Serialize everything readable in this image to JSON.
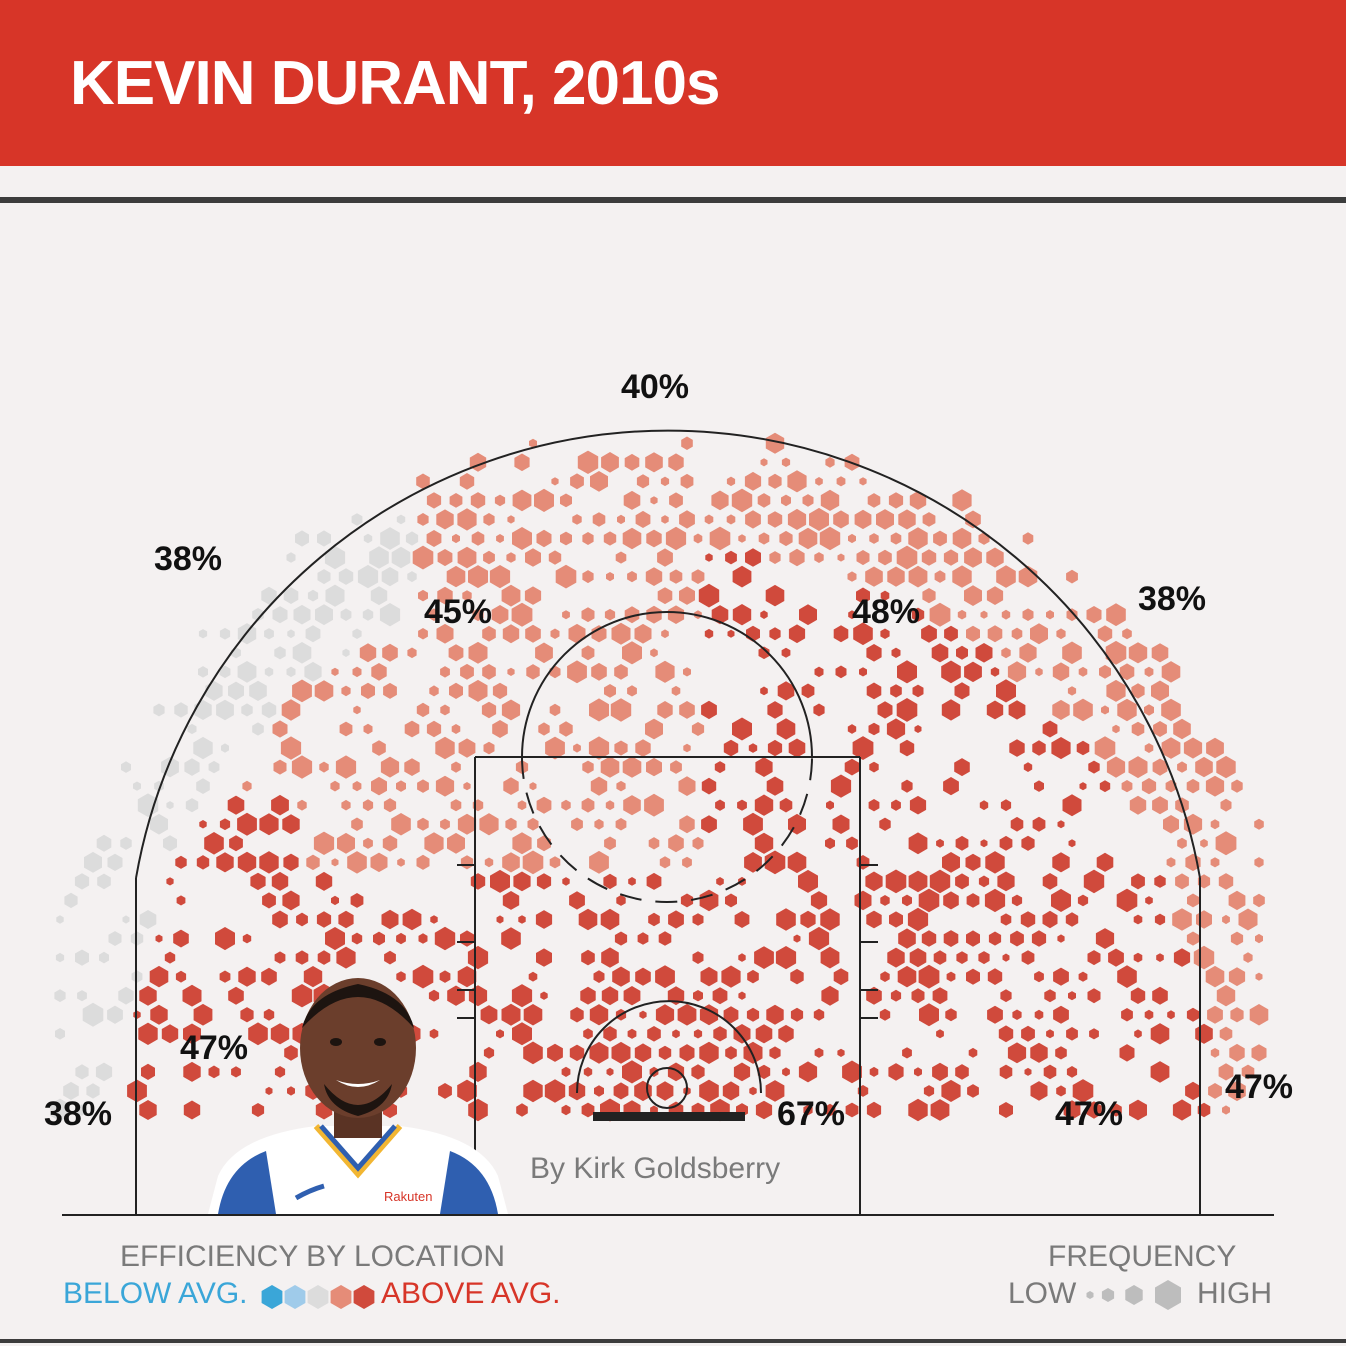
{
  "header": {
    "title": "KEVIN DURANT, 2010s"
  },
  "credit": "By Kirk Goldsberry",
  "colors": {
    "header_bg": "#d73528",
    "below_avg": "#3aa6d8",
    "below_avg_light": "#9fcbea",
    "average": "#dcdcdc",
    "above_avg_light": "#e58c78",
    "above_avg": "#d04a3c",
    "gray_text": "#7a7a7a"
  },
  "legend": {
    "efficiency_title": "EFFICIENCY BY LOCATION",
    "below_label": "BELOW AVG.",
    "above_label": "ABOVE AVG.",
    "frequency_title": "FREQUENCY",
    "low_label": "LOW",
    "high_label": "HIGH"
  },
  "chart_data": {
    "type": "heatmap",
    "title": "KEVIN DURANT, 2010s",
    "subtitle": "",
    "encoding": {
      "color": "efficiency by location (below avg. to above avg.)",
      "size": "frequency (low to high)"
    },
    "zones": [
      {
        "zone": "left corner three",
        "fg_pct": "38%",
        "efficiency": "average"
      },
      {
        "zone": "left wing three",
        "fg_pct": "38%",
        "efficiency": "average"
      },
      {
        "zone": "top of key three",
        "fg_pct": "40%",
        "efficiency": "above"
      },
      {
        "zone": "right wing three",
        "fg_pct": "38%",
        "efficiency": "above"
      },
      {
        "zone": "right corner three",
        "fg_pct": "47%",
        "efficiency": "above"
      },
      {
        "zone": "left elbow midrange",
        "fg_pct": "45%",
        "efficiency": "above"
      },
      {
        "zone": "right elbow midrange",
        "fg_pct": "48%",
        "efficiency": "above"
      },
      {
        "zone": "left baseline midrange",
        "fg_pct": "47%",
        "efficiency": "above"
      },
      {
        "zone": "right baseline midrange",
        "fg_pct": "47%",
        "efficiency": "above"
      },
      {
        "zone": "restricted area",
        "fg_pct": "67%",
        "efficiency": "above"
      }
    ]
  }
}
